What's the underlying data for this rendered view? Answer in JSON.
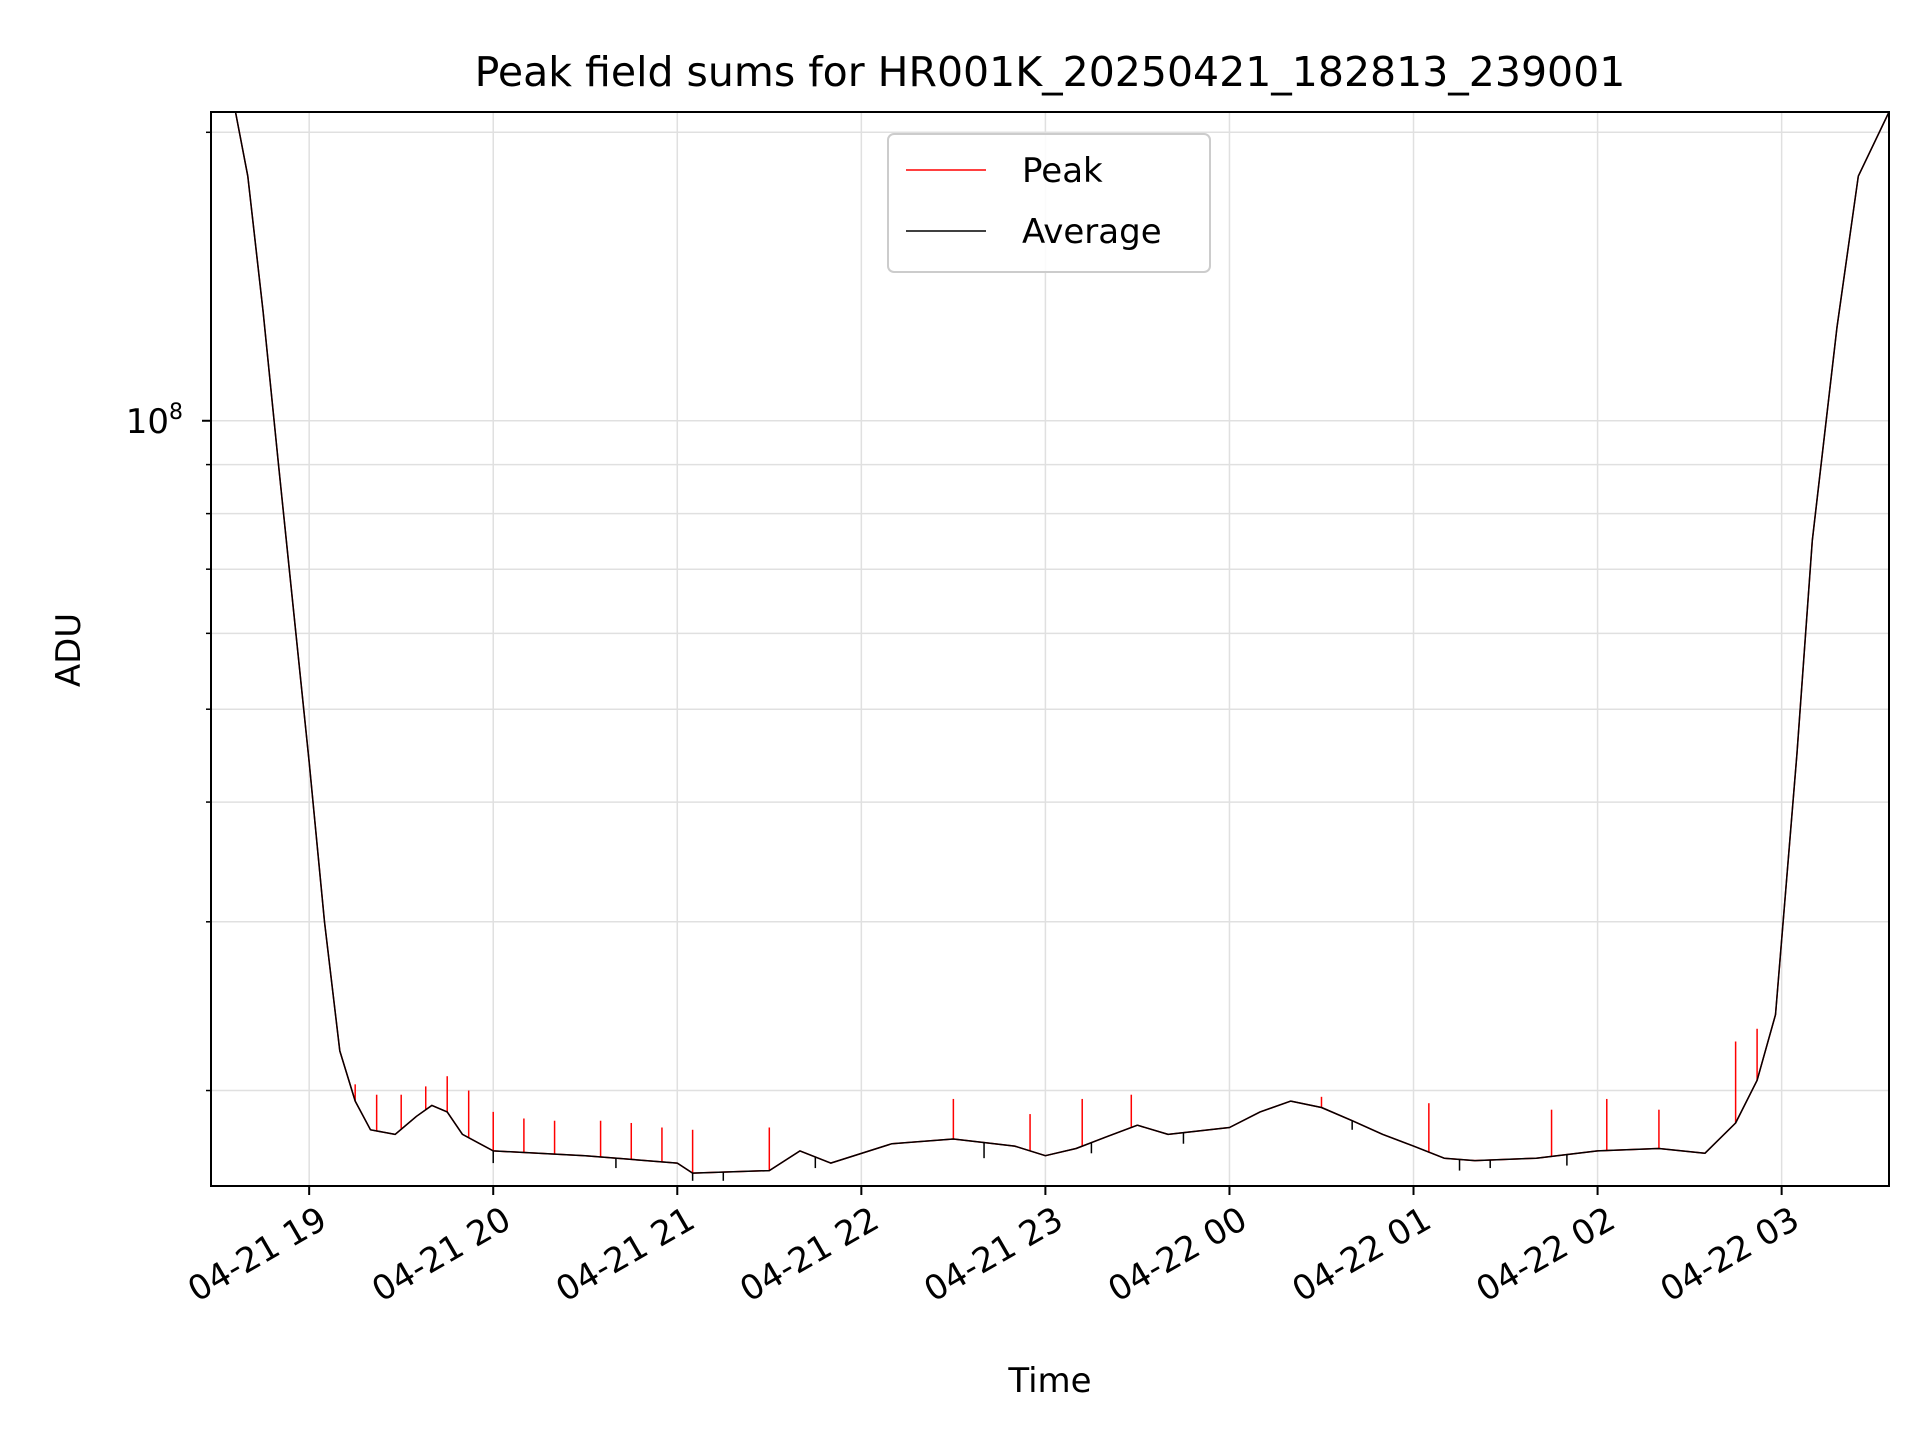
{
  "chart_data": {
    "type": "line",
    "title": "Peak field sums for HR001K_20250421_182813_239001",
    "xlabel": "Time",
    "ylabel": "ADU",
    "y_scale": "log",
    "ylim": [
      15900000,
      210000000
    ],
    "xlim": [
      "2025-04-21T18:28:00",
      "2025-04-22T03:35:00"
    ],
    "grid": true,
    "legend_position": "upper center",
    "x_ticks": [
      {
        "t": "2025-04-21T19:00",
        "label": "04-21 19"
      },
      {
        "t": "2025-04-21T20:00",
        "label": "04-21 20"
      },
      {
        "t": "2025-04-21T21:00",
        "label": "04-21 21"
      },
      {
        "t": "2025-04-21T22:00",
        "label": "04-21 22"
      },
      {
        "t": "2025-04-21T23:00",
        "label": "04-21 23"
      },
      {
        "t": "2025-04-22T00:00",
        "label": "04-22 00"
      },
      {
        "t": "2025-04-22T01:00",
        "label": "04-22 01"
      },
      {
        "t": "2025-04-22T02:00",
        "label": "04-22 02"
      },
      {
        "t": "2025-04-22T03:00",
        "label": "04-22 03"
      }
    ],
    "y_major_ticks": [
      {
        "value": 100000000,
        "base": "10",
        "exp": "8"
      }
    ],
    "y_minor_ticks": [
      20000000,
      30000000,
      40000000,
      50000000,
      60000000,
      70000000,
      80000000,
      90000000,
      200000000
    ],
    "series": [
      {
        "name": "Peak",
        "color": "#ff0000",
        "x": [
          "2025-04-21T18:28",
          "2025-04-21T18:36",
          "2025-04-21T18:40",
          "2025-04-21T18:45",
          "2025-04-21T18:50",
          "2025-04-21T18:55",
          "2025-04-21T19:00",
          "2025-04-21T19:05",
          "2025-04-21T19:10",
          "2025-04-21T19:15",
          "2025-04-21T19:20",
          "2025-04-21T19:28",
          "2025-04-21T19:35",
          "2025-04-21T19:40",
          "2025-04-21T19:45",
          "2025-04-21T19:50",
          "2025-04-21T20:00",
          "2025-04-21T20:30",
          "2025-04-21T21:00",
          "2025-04-21T21:05",
          "2025-04-21T21:30",
          "2025-04-21T21:40",
          "2025-04-21T21:50",
          "2025-04-21T22:10",
          "2025-04-21T22:30",
          "2025-04-21T22:50",
          "2025-04-21T23:00",
          "2025-04-21T23:10",
          "2025-04-21T23:20",
          "2025-04-21T23:30",
          "2025-04-21T23:40",
          "2025-04-22T00:00",
          "2025-04-22T00:10",
          "2025-04-22T00:20",
          "2025-04-22T00:30",
          "2025-04-22T00:40",
          "2025-04-22T00:50",
          "2025-04-22T01:00",
          "2025-04-22T01:10",
          "2025-04-22T01:20",
          "2025-04-22T01:40",
          "2025-04-22T02:00",
          "2025-04-22T02:20",
          "2025-04-22T02:35",
          "2025-04-22T02:45",
          "2025-04-22T02:52",
          "2025-04-22T02:58",
          "2025-04-22T03:05",
          "2025-04-22T03:10",
          "2025-04-22T03:18",
          "2025-04-22T03:25",
          "2025-04-22T03:35"
        ],
        "values": [
          210000000,
          210000000,
          180000000,
          130000000,
          90000000,
          63000000,
          44000000,
          30000000,
          22000000,
          19500000,
          18200000,
          18000000,
          18800000,
          19300000,
          19000000,
          18000000,
          17300000,
          17100000,
          16800000,
          16400000,
          16500000,
          17300000,
          16800000,
          17600000,
          17800000,
          17500000,
          17100000,
          17400000,
          17900000,
          18400000,
          18000000,
          18300000,
          19000000,
          19500000,
          19200000,
          18600000,
          18000000,
          17500000,
          17000000,
          16900000,
          17000000,
          17300000,
          17400000,
          17200000,
          18500000,
          20500000,
          24000000,
          45000000,
          75000000,
          125000000,
          180000000,
          210000000
        ]
      },
      {
        "name": "Average",
        "color": "#000000",
        "x": [
          "2025-04-21T18:28",
          "2025-04-21T18:36",
          "2025-04-21T18:40",
          "2025-04-21T18:45",
          "2025-04-21T18:50",
          "2025-04-21T18:55",
          "2025-04-21T19:00",
          "2025-04-21T19:05",
          "2025-04-21T19:10",
          "2025-04-21T19:15",
          "2025-04-21T19:20",
          "2025-04-21T19:28",
          "2025-04-21T19:35",
          "2025-04-21T19:40",
          "2025-04-21T19:45",
          "2025-04-21T19:50",
          "2025-04-21T20:00",
          "2025-04-21T20:30",
          "2025-04-21T21:00",
          "2025-04-21T21:05",
          "2025-04-21T21:30",
          "2025-04-21T21:40",
          "2025-04-21T21:50",
          "2025-04-21T22:10",
          "2025-04-21T22:30",
          "2025-04-21T22:50",
          "2025-04-21T23:00",
          "2025-04-21T23:10",
          "2025-04-21T23:20",
          "2025-04-21T23:30",
          "2025-04-21T23:40",
          "2025-04-22T00:00",
          "2025-04-22T00:10",
          "2025-04-22T00:20",
          "2025-04-22T00:30",
          "2025-04-22T00:40",
          "2025-04-22T00:50",
          "2025-04-22T01:00",
          "2025-04-22T01:10",
          "2025-04-22T01:20",
          "2025-04-22T01:40",
          "2025-04-22T02:00",
          "2025-04-22T02:20",
          "2025-04-22T02:35",
          "2025-04-22T02:45",
          "2025-04-22T02:52",
          "2025-04-22T02:58",
          "2025-04-22T03:05",
          "2025-04-22T03:10",
          "2025-04-22T03:18",
          "2025-04-22T03:25",
          "2025-04-22T03:35"
        ],
        "values": [
          210000000,
          210000000,
          180000000,
          130000000,
          90000000,
          63000000,
          44000000,
          30000000,
          22000000,
          19500000,
          18200000,
          18000000,
          18800000,
          19300000,
          19000000,
          18000000,
          17300000,
          17100000,
          16800000,
          16400000,
          16500000,
          17300000,
          16800000,
          17600000,
          17800000,
          17500000,
          17100000,
          17400000,
          17900000,
          18400000,
          18000000,
          18300000,
          19000000,
          19500000,
          19200000,
          18600000,
          18000000,
          17500000,
          17000000,
          16900000,
          17000000,
          17300000,
          17400000,
          17200000,
          18500000,
          20500000,
          24000000,
          45000000,
          75000000,
          125000000,
          180000000,
          210000000
        ]
      }
    ],
    "peak_spikes": [
      {
        "t": "2025-04-21T19:15",
        "value": 20300000
      },
      {
        "t": "2025-04-21T19:22",
        "value": 19800000
      },
      {
        "t": "2025-04-21T19:30",
        "value": 19800000
      },
      {
        "t": "2025-04-21T19:38",
        "value": 20200000
      },
      {
        "t": "2025-04-21T19:45",
        "value": 20700000
      },
      {
        "t": "2025-04-21T19:52",
        "value": 20000000
      },
      {
        "t": "2025-04-21T20:00",
        "value": 19000000
      },
      {
        "t": "2025-04-21T20:10",
        "value": 18700000
      },
      {
        "t": "2025-04-21T20:20",
        "value": 18600000
      },
      {
        "t": "2025-04-21T20:35",
        "value": 18600000
      },
      {
        "t": "2025-04-21T20:45",
        "value": 18500000
      },
      {
        "t": "2025-04-21T20:55",
        "value": 18300000
      },
      {
        "t": "2025-04-21T21:05",
        "value": 18200000
      },
      {
        "t": "2025-04-21T21:30",
        "value": 18300000
      },
      {
        "t": "2025-04-21T22:30",
        "value": 19600000
      },
      {
        "t": "2025-04-21T22:55",
        "value": 18900000
      },
      {
        "t": "2025-04-21T23:12",
        "value": 19600000
      },
      {
        "t": "2025-04-21T23:28",
        "value": 19800000
      },
      {
        "t": "2025-04-22T00:30",
        "value": 19700000
      },
      {
        "t": "2025-04-22T01:05",
        "value": 19400000
      },
      {
        "t": "2025-04-22T01:45",
        "value": 19100000
      },
      {
        "t": "2025-04-22T02:03",
        "value": 19600000
      },
      {
        "t": "2025-04-22T02:20",
        "value": 19100000
      },
      {
        "t": "2025-04-22T02:45",
        "value": 22500000
      },
      {
        "t": "2025-04-22T02:52",
        "value": 23200000
      }
    ],
    "average_dips": [
      {
        "t": "2025-04-21T20:00",
        "value": 16800000
      },
      {
        "t": "2025-04-21T20:40",
        "value": 16600000
      },
      {
        "t": "2025-04-21T21:05",
        "value": 16100000
      },
      {
        "t": "2025-04-21T21:15",
        "value": 16100000
      },
      {
        "t": "2025-04-21T21:45",
        "value": 16600000
      },
      {
        "t": "2025-04-21T22:40",
        "value": 17000000
      },
      {
        "t": "2025-04-21T23:15",
        "value": 17200000
      },
      {
        "t": "2025-04-21T23:45",
        "value": 17600000
      },
      {
        "t": "2025-04-22T00:40",
        "value": 18200000
      },
      {
        "t": "2025-04-22T01:15",
        "value": 16500000
      },
      {
        "t": "2025-04-22T01:25",
        "value": 16600000
      },
      {
        "t": "2025-04-22T01:50",
        "value": 16700000
      }
    ]
  }
}
